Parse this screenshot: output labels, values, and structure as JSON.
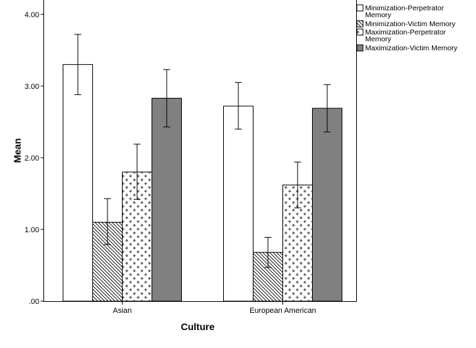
{
  "chart_data": {
    "type": "bar",
    "xlabel": "Culture",
    "ylabel": "Mean",
    "categories": [
      "Asian",
      "European American"
    ],
    "ylim": [
      0,
      4.2
    ],
    "yticks": [
      0,
      1,
      2,
      3,
      4
    ],
    "ytick_labels": [
      ".00",
      "1.00",
      "2.00",
      "3.00",
      "4.00"
    ],
    "grid": false,
    "legend_position": "top-right",
    "series": [
      {
        "name": "Minimization-Perpetrator Memory",
        "legend_lines": [
          "Minimization-Perpetrator",
          "Memory"
        ],
        "pattern": "white",
        "values": [
          3.3,
          2.72
        ],
        "error_low": [
          2.88,
          2.4
        ],
        "error_high": [
          3.72,
          3.05
        ]
      },
      {
        "name": "Minimization-Victim Memory",
        "legend_lines": [
          "Minimization-Victim Memory"
        ],
        "pattern": "diagonal-hatch",
        "values": [
          1.1,
          0.68
        ],
        "error_low": [
          0.79,
          0.47
        ],
        "error_high": [
          1.43,
          0.89
        ]
      },
      {
        "name": "Maximization-Perpetrator Memory",
        "legend_lines": [
          "Maximization-Perpetrator",
          "Memory"
        ],
        "pattern": "plus-crosses",
        "values": [
          1.8,
          1.62
        ],
        "error_low": [
          1.42,
          1.3
        ],
        "error_high": [
          2.19,
          1.94
        ]
      },
      {
        "name": "Maximization-Victim Memory",
        "legend_lines": [
          "Maximization-Victim Memory"
        ],
        "pattern": "gray",
        "color": "#808080",
        "values": [
          2.83,
          2.69
        ],
        "error_low": [
          2.43,
          2.36
        ],
        "error_high": [
          3.23,
          3.02
        ]
      }
    ]
  }
}
